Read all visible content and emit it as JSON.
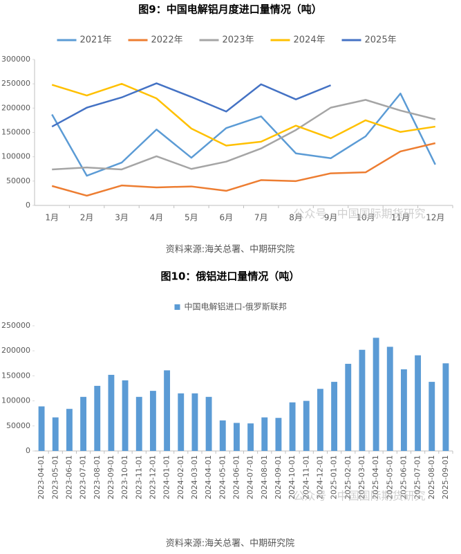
{
  "chart_data": [
    {
      "type": "line",
      "title": "图9：中国电解铝月度进口量情况（吨）",
      "categories": [
        "1月",
        "2月",
        "3月",
        "4月",
        "5月",
        "6月",
        "7月",
        "8月",
        "9月",
        "10月",
        "11月",
        "12月"
      ],
      "series": [
        {
          "name": "2021年",
          "color": "#5b9bd5",
          "values": [
            187000,
            61000,
            88000,
            156000,
            98000,
            159000,
            183000,
            107000,
            97000,
            142000,
            230000,
            84000
          ]
        },
        {
          "name": "2022年",
          "color": "#ed7d31",
          "values": [
            40000,
            20000,
            41000,
            37000,
            39000,
            30000,
            52000,
            50000,
            66000,
            68000,
            111000,
            128000
          ]
        },
        {
          "name": "2023年",
          "color": "#a5a5a5",
          "values": [
            74000,
            78000,
            74000,
            101000,
            75000,
            90000,
            117000,
            155000,
            201000,
            217000,
            195000,
            177000
          ]
        },
        {
          "name": "2024年",
          "color": "#ffc000",
          "values": [
            248000,
            226000,
            250000,
            220000,
            158000,
            123000,
            131000,
            164000,
            138000,
            175000,
            151000,
            162000
          ]
        },
        {
          "name": "2025年",
          "color": "#4472c4",
          "values": [
            162000,
            201000,
            222000,
            251000,
            223000,
            193000,
            249000,
            218000,
            247000,
            null,
            null,
            null
          ]
        }
      ],
      "ylim": [
        0,
        300000
      ],
      "yticks": [
        0,
        50000,
        100000,
        150000,
        200000,
        250000,
        300000
      ],
      "grid": false,
      "legend": "top",
      "watermark": "公众号 · 中国国际期货研究",
      "source": "资料来源:海关总署、中期研究院"
    },
    {
      "type": "bar",
      "title": "图10：俄铝进口量情况（吨）",
      "categories": [
        "2023-04-01",
        "2023-05-01",
        "2023-06-01",
        "2023-07-01",
        "2023-08-01",
        "2023-09-01",
        "2023-10-01",
        "2023-11-01",
        "2023-12-01",
        "2024-01-01",
        "2024-02-01",
        "2024-03-01",
        "2024-04-01",
        "2024-05-01",
        "2024-06-01",
        "2024-07-01",
        "2024-08-01",
        "2024-09-01",
        "2024-10-01",
        "2024-11-01",
        "2024-12-01",
        "2025-01-01",
        "2025-02-01",
        "2025-03-01",
        "2025-04-01",
        "2025-05-01",
        "2025-06-01",
        "2025-07-01",
        "2025-08-01",
        "2025-09-01"
      ],
      "series": [
        {
          "name": "中国电解铝进口-俄罗斯联邦",
          "color": "#5b9bd5",
          "values": [
            89000,
            67000,
            84000,
            108000,
            130000,
            152000,
            141000,
            108000,
            120000,
            161000,
            115000,
            115000,
            108000,
            61000,
            56000,
            55000,
            67000,
            66000,
            97000,
            100000,
            124000,
            138000,
            174000,
            202000,
            226000,
            208000,
            163000,
            191000,
            138000,
            175000
          ]
        }
      ],
      "ylim": [
        0,
        250000
      ],
      "yticks": [
        0,
        50000,
        100000,
        150000,
        200000,
        250000
      ],
      "grid": false,
      "legend": "top",
      "watermark": "公众号 · 中国国际期货研究",
      "source": "资料来源:海关总署、中期研究院"
    }
  ]
}
